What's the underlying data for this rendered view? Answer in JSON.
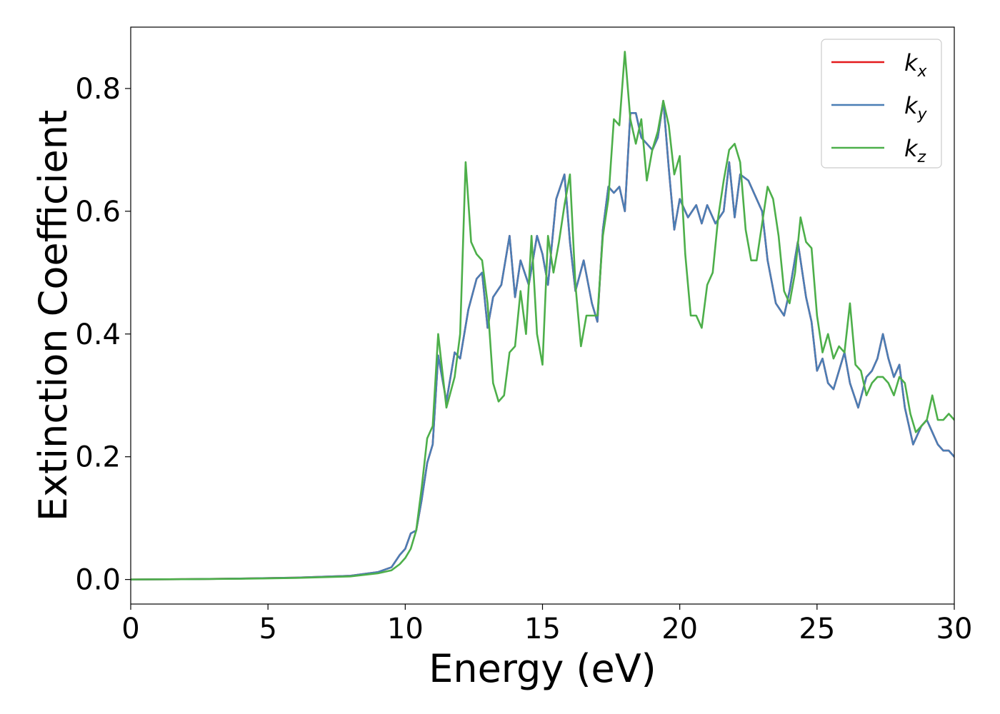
{
  "chart_data": {
    "type": "line",
    "title": "",
    "xlabel": "Energy (eV)",
    "ylabel": "Extinction Coefficient",
    "xlim": [
      0,
      30
    ],
    "ylim": [
      -0.04,
      0.9
    ],
    "xticks": [
      0,
      5,
      10,
      15,
      20,
      25,
      30
    ],
    "xtick_labels": [
      "0",
      "5",
      "10",
      "15",
      "20",
      "25",
      "30"
    ],
    "yticks": [
      0.0,
      0.2,
      0.4,
      0.6,
      0.8
    ],
    "ytick_labels": [
      "0.0",
      "0.2",
      "0.4",
      "0.6",
      "0.8"
    ],
    "grid": false,
    "legend_position": "top-right",
    "series": [
      {
        "name": "kx",
        "label_base": "k",
        "label_sub": "x",
        "color": "#e41a1c",
        "x": [
          0,
          2,
          4,
          6,
          8,
          9,
          9.5,
          9.8,
          10,
          10.2,
          10.4,
          10.6,
          10.8,
          11.0,
          11.2,
          11.5,
          11.8,
          12.0,
          12.3,
          12.6,
          12.8,
          13.0,
          13.2,
          13.5,
          13.8,
          14.0,
          14.2,
          14.5,
          14.8,
          15.0,
          15.2,
          15.5,
          15.8,
          16.0,
          16.2,
          16.5,
          16.8,
          17.0,
          17.2,
          17.4,
          17.6,
          17.8,
          18.0,
          18.2,
          18.4,
          18.6,
          18.8,
          19.0,
          19.2,
          19.4,
          19.6,
          19.8,
          20.0,
          20.3,
          20.6,
          20.8,
          21.0,
          21.3,
          21.6,
          21.8,
          22.0,
          22.2,
          22.5,
          22.8,
          23.0,
          23.2,
          23.5,
          23.8,
          24.0,
          24.3,
          24.6,
          24.8,
          25.0,
          25.2,
          25.4,
          25.6,
          25.8,
          26.0,
          26.2,
          26.5,
          26.8,
          27.0,
          27.2,
          27.4,
          27.6,
          27.8,
          28.0,
          28.2,
          28.5,
          28.8,
          29.0,
          29.2,
          29.4,
          29.6,
          29.8,
          30.0
        ],
        "y": [
          0.0,
          0.0005,
          0.0015,
          0.003,
          0.006,
          0.012,
          0.02,
          0.04,
          0.05,
          0.075,
          0.08,
          0.13,
          0.19,
          0.22,
          0.365,
          0.29,
          0.37,
          0.36,
          0.44,
          0.49,
          0.5,
          0.41,
          0.46,
          0.48,
          0.56,
          0.46,
          0.52,
          0.48,
          0.56,
          0.53,
          0.48,
          0.62,
          0.66,
          0.55,
          0.47,
          0.52,
          0.45,
          0.42,
          0.57,
          0.64,
          0.63,
          0.64,
          0.6,
          0.76,
          0.76,
          0.72,
          0.71,
          0.7,
          0.72,
          0.78,
          0.67,
          0.57,
          0.62,
          0.59,
          0.61,
          0.58,
          0.61,
          0.58,
          0.6,
          0.68,
          0.59,
          0.66,
          0.65,
          0.62,
          0.6,
          0.52,
          0.45,
          0.43,
          0.47,
          0.55,
          0.46,
          0.42,
          0.34,
          0.36,
          0.32,
          0.31,
          0.34,
          0.37,
          0.32,
          0.28,
          0.33,
          0.34,
          0.36,
          0.4,
          0.36,
          0.33,
          0.35,
          0.28,
          0.22,
          0.25,
          0.26,
          0.24,
          0.22,
          0.21,
          0.21,
          0.2
        ]
      },
      {
        "name": "ky",
        "label_base": "k",
        "label_sub": "y",
        "color": "#4a7eb5",
        "x": [
          0,
          2,
          4,
          6,
          8,
          9,
          9.5,
          9.8,
          10,
          10.2,
          10.4,
          10.6,
          10.8,
          11.0,
          11.2,
          11.5,
          11.8,
          12.0,
          12.3,
          12.6,
          12.8,
          13.0,
          13.2,
          13.5,
          13.8,
          14.0,
          14.2,
          14.5,
          14.8,
          15.0,
          15.2,
          15.5,
          15.8,
          16.0,
          16.2,
          16.5,
          16.8,
          17.0,
          17.2,
          17.4,
          17.6,
          17.8,
          18.0,
          18.2,
          18.4,
          18.6,
          18.8,
          19.0,
          19.2,
          19.4,
          19.6,
          19.8,
          20.0,
          20.3,
          20.6,
          20.8,
          21.0,
          21.3,
          21.6,
          21.8,
          22.0,
          22.2,
          22.5,
          22.8,
          23.0,
          23.2,
          23.5,
          23.8,
          24.0,
          24.3,
          24.6,
          24.8,
          25.0,
          25.2,
          25.4,
          25.6,
          25.8,
          26.0,
          26.2,
          26.5,
          26.8,
          27.0,
          27.2,
          27.4,
          27.6,
          27.8,
          28.0,
          28.2,
          28.5,
          28.8,
          29.0,
          29.2,
          29.4,
          29.6,
          29.8,
          30.0
        ],
        "y": [
          0.0,
          0.0005,
          0.0015,
          0.003,
          0.006,
          0.012,
          0.02,
          0.04,
          0.05,
          0.075,
          0.08,
          0.13,
          0.19,
          0.22,
          0.365,
          0.29,
          0.37,
          0.36,
          0.44,
          0.49,
          0.5,
          0.41,
          0.46,
          0.48,
          0.56,
          0.46,
          0.52,
          0.48,
          0.56,
          0.53,
          0.48,
          0.62,
          0.66,
          0.55,
          0.47,
          0.52,
          0.45,
          0.42,
          0.57,
          0.64,
          0.63,
          0.64,
          0.6,
          0.76,
          0.76,
          0.72,
          0.71,
          0.7,
          0.72,
          0.78,
          0.67,
          0.57,
          0.62,
          0.59,
          0.61,
          0.58,
          0.61,
          0.58,
          0.6,
          0.68,
          0.59,
          0.66,
          0.65,
          0.62,
          0.6,
          0.52,
          0.45,
          0.43,
          0.47,
          0.55,
          0.46,
          0.42,
          0.34,
          0.36,
          0.32,
          0.31,
          0.34,
          0.37,
          0.32,
          0.28,
          0.33,
          0.34,
          0.36,
          0.4,
          0.36,
          0.33,
          0.35,
          0.28,
          0.22,
          0.25,
          0.26,
          0.24,
          0.22,
          0.21,
          0.21,
          0.2
        ]
      },
      {
        "name": "kz",
        "label_base": "k",
        "label_sub": "z",
        "color": "#4daf4a",
        "x": [
          0,
          2,
          4,
          6,
          8,
          9,
          9.5,
          9.8,
          10,
          10.2,
          10.4,
          10.6,
          10.8,
          11.0,
          11.2,
          11.5,
          11.8,
          12.0,
          12.2,
          12.4,
          12.6,
          12.8,
          13.0,
          13.2,
          13.4,
          13.6,
          13.8,
          14.0,
          14.2,
          14.4,
          14.6,
          14.8,
          15.0,
          15.2,
          15.4,
          15.6,
          15.8,
          16.0,
          16.2,
          16.4,
          16.6,
          16.8,
          17.0,
          17.2,
          17.4,
          17.6,
          17.8,
          18.0,
          18.2,
          18.4,
          18.6,
          18.8,
          19.0,
          19.2,
          19.4,
          19.6,
          19.8,
          20.0,
          20.2,
          20.4,
          20.6,
          20.8,
          21.0,
          21.2,
          21.4,
          21.6,
          21.8,
          22.0,
          22.2,
          22.4,
          22.6,
          22.8,
          23.0,
          23.2,
          23.4,
          23.6,
          23.8,
          24.0,
          24.2,
          24.4,
          24.6,
          24.8,
          25.0,
          25.2,
          25.4,
          25.6,
          25.8,
          26.0,
          26.2,
          26.4,
          26.6,
          26.8,
          27.0,
          27.2,
          27.4,
          27.6,
          27.8,
          28.0,
          28.2,
          28.4,
          28.6,
          28.8,
          29.0,
          29.2,
          29.4,
          29.6,
          29.8,
          30.0
        ],
        "y": [
          0.0,
          0.0005,
          0.0012,
          0.0025,
          0.005,
          0.01,
          0.015,
          0.025,
          0.035,
          0.05,
          0.08,
          0.15,
          0.23,
          0.25,
          0.4,
          0.28,
          0.33,
          0.4,
          0.68,
          0.55,
          0.53,
          0.52,
          0.45,
          0.32,
          0.29,
          0.3,
          0.37,
          0.38,
          0.47,
          0.4,
          0.56,
          0.4,
          0.35,
          0.56,
          0.5,
          0.55,
          0.61,
          0.66,
          0.48,
          0.38,
          0.43,
          0.43,
          0.43,
          0.56,
          0.62,
          0.75,
          0.74,
          0.86,
          0.75,
          0.71,
          0.75,
          0.65,
          0.7,
          0.73,
          0.78,
          0.74,
          0.66,
          0.69,
          0.53,
          0.43,
          0.43,
          0.41,
          0.48,
          0.5,
          0.59,
          0.65,
          0.7,
          0.71,
          0.68,
          0.57,
          0.52,
          0.52,
          0.58,
          0.64,
          0.62,
          0.56,
          0.47,
          0.45,
          0.5,
          0.59,
          0.55,
          0.54,
          0.43,
          0.37,
          0.4,
          0.36,
          0.38,
          0.37,
          0.45,
          0.35,
          0.34,
          0.3,
          0.32,
          0.33,
          0.33,
          0.32,
          0.3,
          0.33,
          0.32,
          0.27,
          0.24,
          0.25,
          0.26,
          0.3,
          0.26,
          0.26,
          0.27,
          0.26
        ]
      }
    ]
  }
}
